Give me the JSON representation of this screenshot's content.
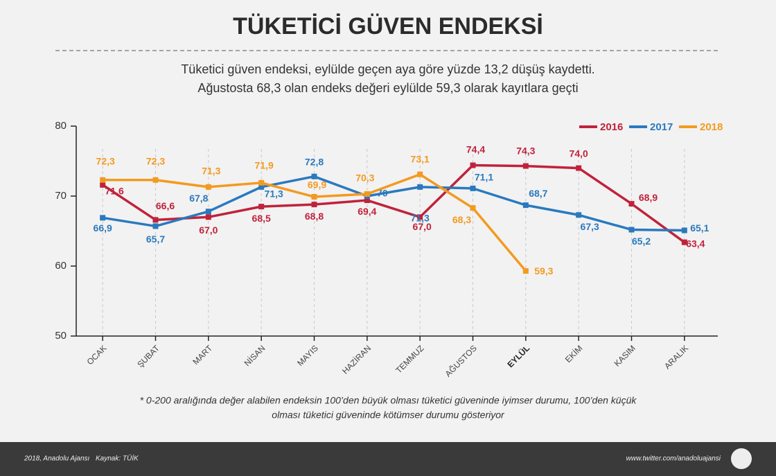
{
  "chart_data": {
    "type": "line",
    "title": "TÜKETİCİ GÜVEN ENDEKSİ",
    "subtitle": [
      "Tüketici güven endeksi, eylülde geçen aya göre yüzde 13,2 düşüş kaydetti.",
      "Ağustosta 68,3 olan endeks değeri eylülde 59,3 olarak kayıtlara geçti"
    ],
    "categories": [
      "OCAK",
      "ŞUBAT",
      "MART",
      "NİSAN",
      "MAYIS",
      "HAZİRAN",
      "TEMMUZ",
      "AĞUSTOS",
      "EYLÜL",
      "EKİM",
      "KASIM",
      "ARALIK"
    ],
    "highlight_index": 8,
    "series": [
      {
        "name": "2016",
        "color": "#c0223b",
        "values": [
          71.6,
          66.6,
          67.0,
          68.5,
          68.8,
          69.4,
          67.0,
          74.4,
          74.3,
          74.0,
          68.9,
          63.4
        ],
        "value_labels": [
          "71,6",
          "66,6",
          "67,0",
          "68,5",
          "68,8",
          "69,4",
          "67,0",
          "74,4",
          "74,3",
          "74,0",
          "68,9",
          "63,4"
        ]
      },
      {
        "name": "2017",
        "color": "#2a79be",
        "values": [
          66.9,
          65.7,
          67.8,
          71.3,
          72.8,
          70,
          71.3,
          71.1,
          68.7,
          67.3,
          65.2,
          65.1
        ],
        "value_labels": [
          "66,9",
          "65,7",
          "67,8",
          "71,3",
          "72,8",
          "70",
          "71,3",
          "71,1",
          "68,7",
          "67,3",
          "65,2",
          "65,1"
        ]
      },
      {
        "name": "2018",
        "color": "#f39a1f",
        "values": [
          72.3,
          72.3,
          71.3,
          71.9,
          69.9,
          70.3,
          73.1,
          68.3,
          59.3,
          null,
          null,
          null
        ],
        "value_labels": [
          "72,3",
          "72,3",
          "71,3",
          "71,9",
          "69,9",
          "70,3",
          "73,1",
          "68,3",
          "59,3",
          null,
          null,
          null
        ]
      }
    ],
    "ylim": [
      50,
      80
    ],
    "yticks": [
      50,
      60,
      70,
      80
    ],
    "legend": "top-right",
    "note": [
      "* 0-200 aralığında değer alabilen endeksin 100’den büyük olması tüketici güveninde iyimser durumu, 100’den küçük",
      "olması tüketici güveninde kötümser durumu gösteriyor"
    ],
    "footer": {
      "copyright": "2018, Anadolu Ajansı",
      "source": "Kaynak: TÜİK",
      "url": "www.twitter.com/anadoluajansi"
    }
  }
}
